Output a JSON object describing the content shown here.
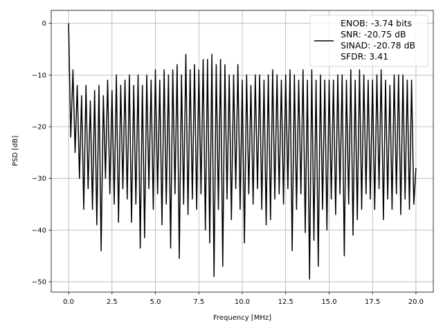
{
  "chart_data": {
    "type": "line",
    "title": "",
    "xlabel": "Frequency [MHz]",
    "ylabel": "PSD [dB]",
    "xlim": [
      -1,
      21
    ],
    "ylim": [
      -52,
      2.5
    ],
    "xticks": [
      0,
      2.5,
      5,
      7.5,
      10,
      12.5,
      15,
      17.5,
      20
    ],
    "xtick_labels": [
      "0.0",
      "2.5",
      "5.0",
      "7.5",
      "10.0",
      "12.5",
      "15.0",
      "17.5",
      "20.0"
    ],
    "yticks": [
      0,
      -10,
      -20,
      -30,
      -40,
      -50
    ],
    "ytick_labels": [
      "0",
      "−10",
      "−20",
      "−30",
      "−40",
      "−50"
    ],
    "grid": true,
    "legend_placement": "top-right",
    "line_color": "#000000",
    "series": [
      {
        "name": "ENOB: -3.74 bits\nSNR: -20.75 dB\nSINAD: -20.78 dB\nSFDR: 3.41",
        "legend_lines": [
          "ENOB: -3.74 bits",
          "SNR: -20.75 dB",
          "SINAD: -20.78 dB",
          "SFDR: 3.41"
        ],
        "x": [
          0,
          0.125,
          0.25,
          0.375,
          0.5,
          0.625,
          0.75,
          0.875,
          1,
          1.125,
          1.25,
          1.375,
          1.5,
          1.625,
          1.75,
          1.875,
          2,
          2.125,
          2.25,
          2.375,
          2.5,
          2.625,
          2.75,
          2.875,
          3,
          3.125,
          3.25,
          3.375,
          3.5,
          3.625,
          3.75,
          3.875,
          4,
          4.125,
          4.25,
          4.375,
          4.5,
          4.625,
          4.75,
          4.875,
          5,
          5.125,
          5.25,
          5.375,
          5.5,
          5.625,
          5.75,
          5.875,
          6,
          6.125,
          6.25,
          6.375,
          6.5,
          6.625,
          6.75,
          6.875,
          7,
          7.125,
          7.25,
          7.375,
          7.5,
          7.625,
          7.75,
          7.875,
          8,
          8.125,
          8.25,
          8.375,
          8.5,
          8.625,
          8.75,
          8.875,
          9,
          9.125,
          9.25,
          9.375,
          9.5,
          9.625,
          9.75,
          9.875,
          10,
          10.125,
          10.25,
          10.375,
          10.5,
          10.625,
          10.75,
          10.875,
          11,
          11.125,
          11.25,
          11.375,
          11.5,
          11.625,
          11.75,
          11.875,
          12,
          12.125,
          12.25,
          12.375,
          12.5,
          12.625,
          12.75,
          12.875,
          13,
          13.125,
          13.25,
          13.375,
          13.5,
          13.625,
          13.75,
          13.875,
          14,
          14.125,
          14.25,
          14.375,
          14.5,
          14.625,
          14.75,
          14.875,
          15,
          15.125,
          15.25,
          15.375,
          15.5,
          15.625,
          15.75,
          15.875,
          16,
          16.125,
          16.25,
          16.375,
          16.5,
          16.625,
          16.75,
          16.875,
          17,
          17.125,
          17.25,
          17.375,
          17.5,
          17.625,
          17.75,
          17.875,
          18,
          18.125,
          18.25,
          18.375,
          18.5,
          18.625,
          18.75,
          18.875,
          19,
          19.125,
          19.25,
          19.375,
          19.5,
          19.625,
          19.75,
          19.875,
          20
        ],
        "y": [
          0,
          -22,
          -9,
          -25,
          -12,
          -30,
          -14,
          -36,
          -12,
          -32,
          -15,
          -36,
          -13,
          -39,
          -12,
          -44,
          -14,
          -30,
          -11,
          -33,
          -13,
          -35,
          -10,
          -38.5,
          -12,
          -32,
          -11,
          -34,
          -10,
          -38.5,
          -12,
          -35,
          -10,
          -43.5,
          -12,
          -41.5,
          -10,
          -32,
          -11,
          -36,
          -9,
          -33,
          -11,
          -39,
          -9,
          -35,
          -10,
          -43.5,
          -9,
          -33,
          -8,
          -45.5,
          -10,
          -35,
          -6,
          -37,
          -9,
          -34,
          -8,
          -36,
          -9,
          -33,
          -7,
          -40,
          -7,
          -42.5,
          -6,
          -49,
          -8,
          -36,
          -7,
          -47,
          -8,
          -34,
          -10,
          -38,
          -10,
          -32,
          -8,
          -36,
          -11,
          -42.5,
          -10,
          -33,
          -12,
          -35,
          -10,
          -32,
          -10,
          -36,
          -11,
          -39,
          -10,
          -38,
          -9,
          -34,
          -10,
          -33,
          -11,
          -35,
          -10,
          -32,
          -9,
          -44,
          -10,
          -36,
          -11,
          -33,
          -9,
          -40.5,
          -11,
          -49.5,
          -9,
          -42,
          -11,
          -47,
          -10,
          -36,
          -11,
          -40,
          -11,
          -34,
          -11,
          -37,
          -10,
          -33,
          -10,
          -45,
          -11,
          -35,
          -9,
          -41,
          -11,
          -38,
          -9,
          -36,
          -10,
          -33,
          -11,
          -34,
          -11,
          -36,
          -10,
          -32,
          -9,
          -38,
          -11,
          -34,
          -12,
          -36,
          -10,
          -33,
          -10,
          -37,
          -10,
          -34,
          -11,
          -36,
          -11,
          -35,
          -28
        ]
      }
    ]
  }
}
